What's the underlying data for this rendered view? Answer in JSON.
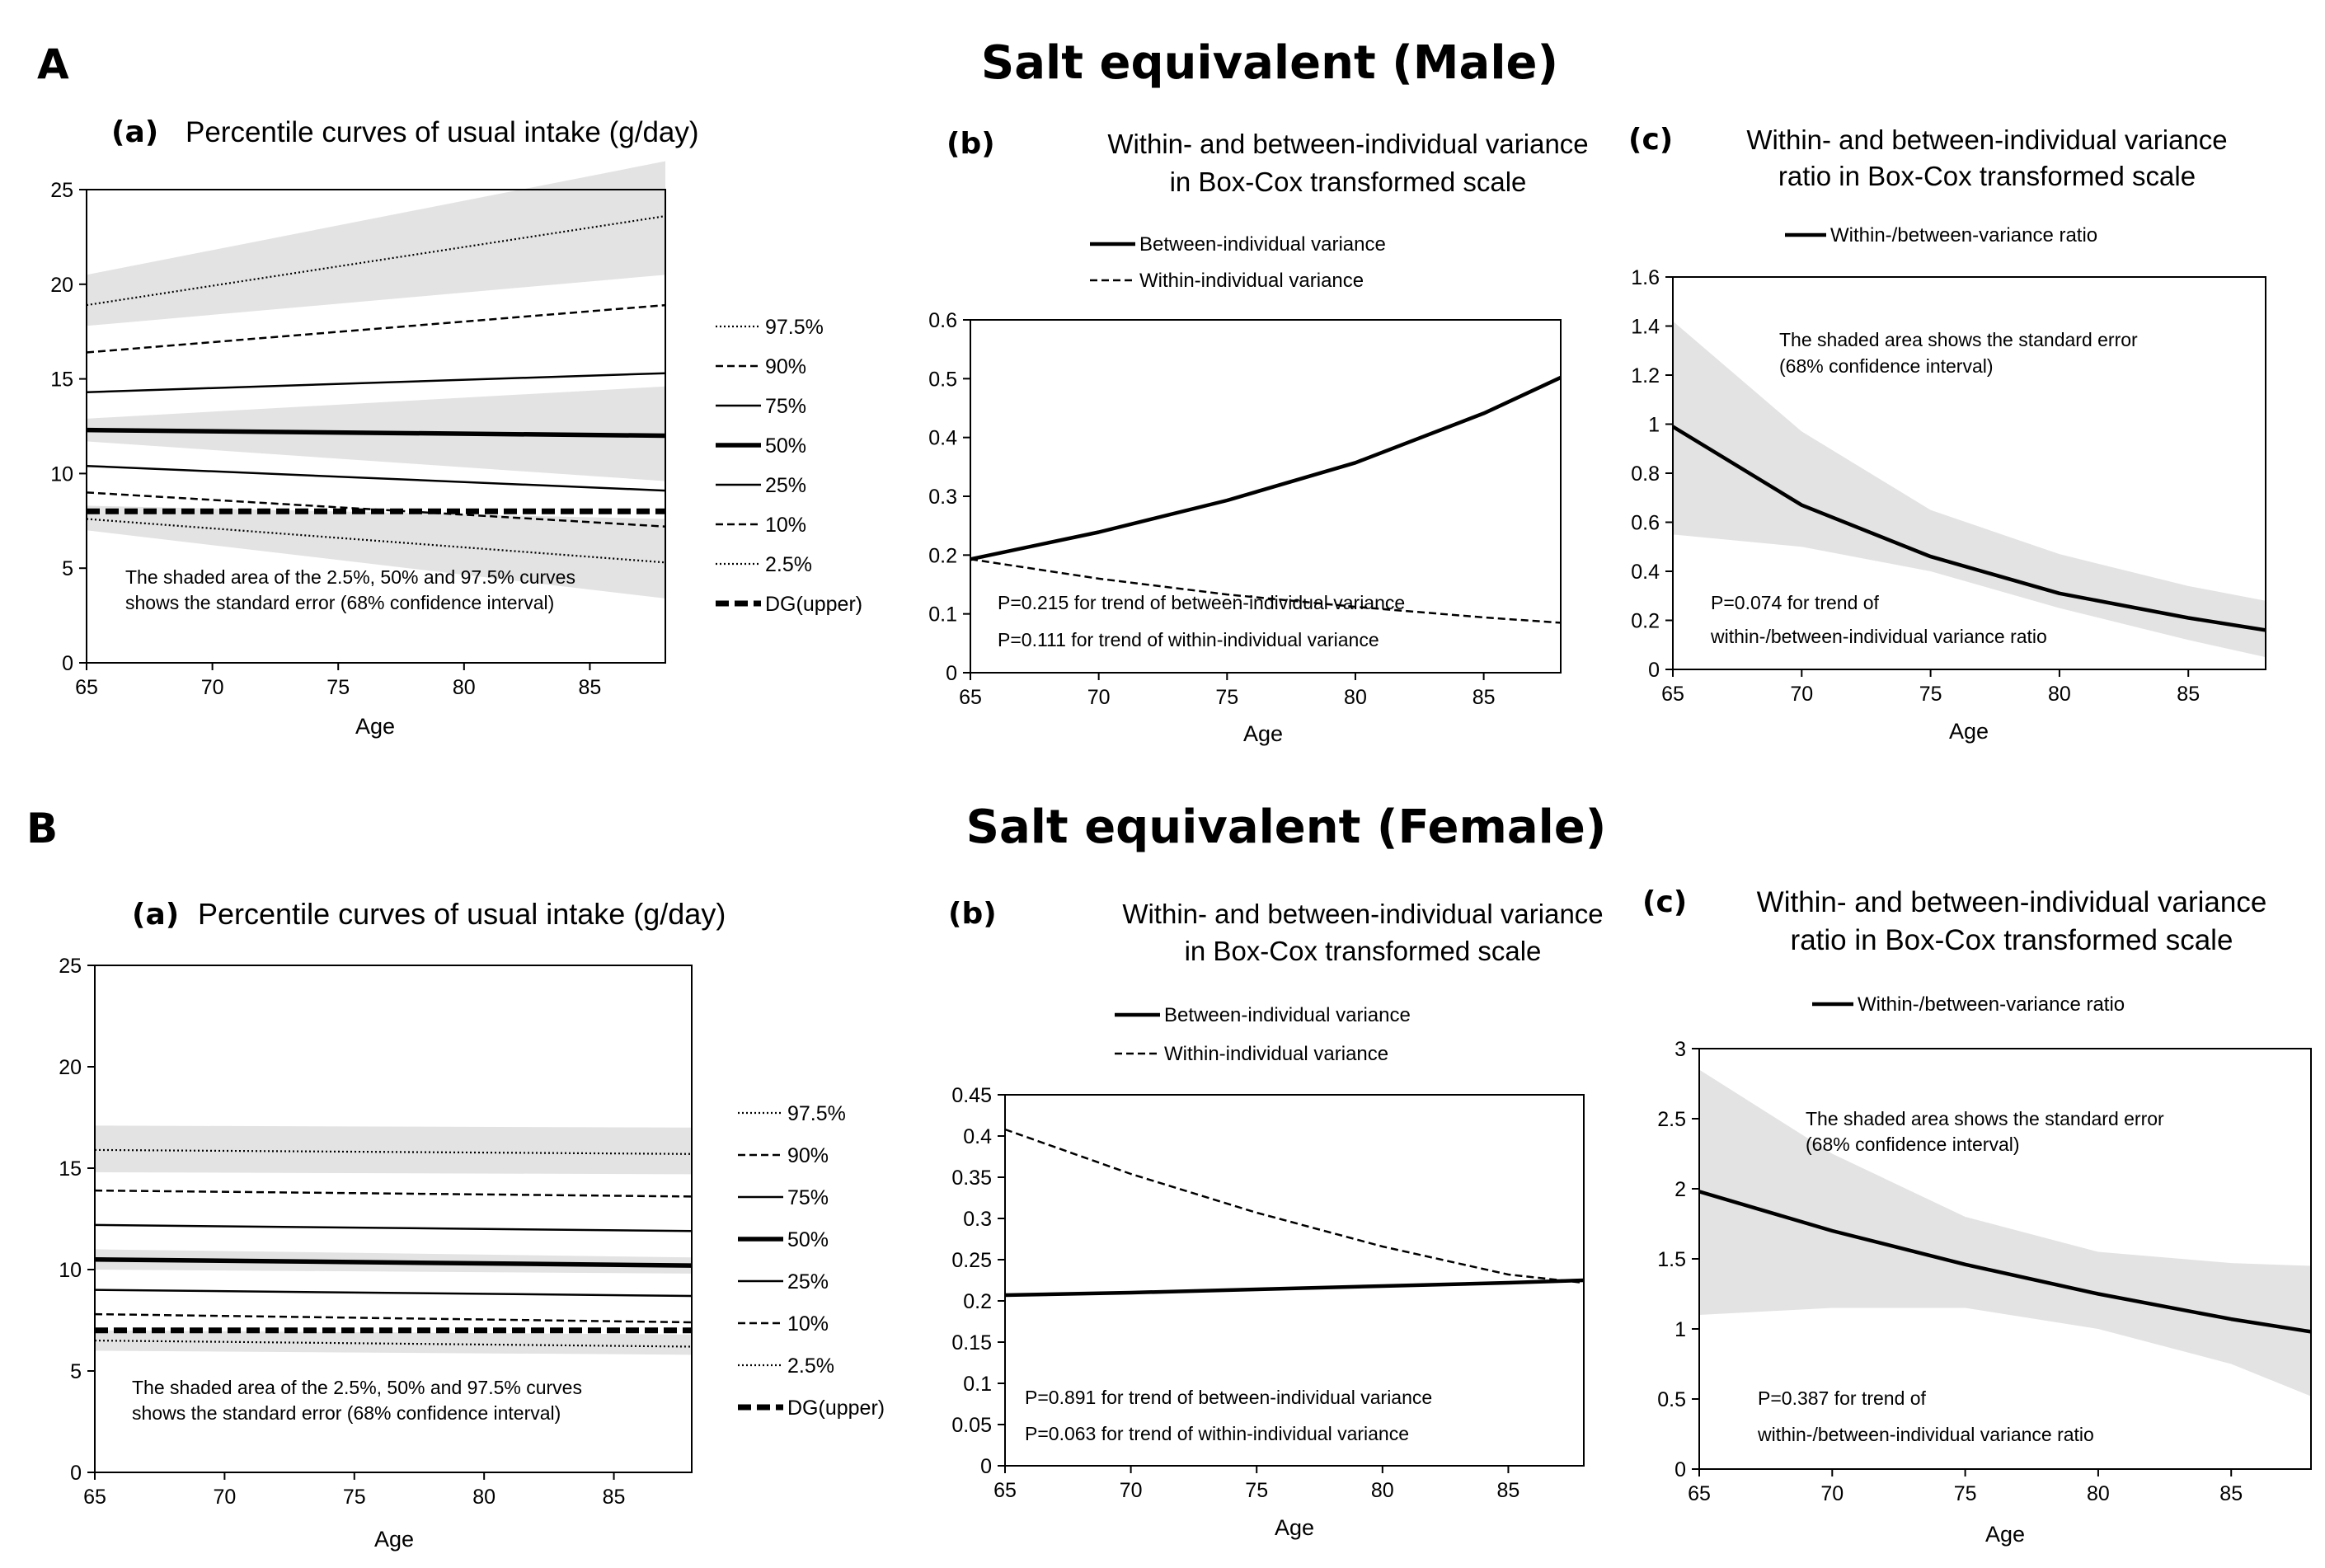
{
  "section_a": {
    "letter": "A",
    "title": "Salt equivalent (Male)"
  },
  "section_b": {
    "letter": "B",
    "title": "Salt equivalent (Female)"
  },
  "chart_data": [
    {
      "id": "male_a",
      "type": "line",
      "label": "(a)",
      "title": [
        "Percentile curves of usual intake (g/day)"
      ],
      "xlabel": "Age",
      "ylabel": "",
      "xlim": [
        65,
        88
      ],
      "ylim": [
        0,
        25
      ],
      "xticks": [
        65,
        70,
        75,
        80,
        85
      ],
      "yticks": [
        0,
        5,
        10,
        15,
        20,
        25
      ],
      "x": [
        65,
        88
      ],
      "bands": [
        {
          "of": "97.5%",
          "lower": [
            17.8,
            20.5
          ],
          "upper": [
            20.5,
            26.5
          ]
        },
        {
          "of": "50%",
          "lower": [
            11.7,
            9.6
          ],
          "upper": [
            12.9,
            14.6
          ]
        },
        {
          "of": "2.5%",
          "lower": [
            7.0,
            3.4
          ],
          "upper": [
            8.3,
            7.6
          ]
        }
      ],
      "series": [
        {
          "name": "97.5%",
          "style": "dotted",
          "values": [
            18.9,
            23.6
          ]
        },
        {
          "name": "90%",
          "style": "dashed",
          "values": [
            16.4,
            18.9
          ]
        },
        {
          "name": "75%",
          "style": "solid",
          "values": [
            14.3,
            15.3
          ]
        },
        {
          "name": "50%",
          "style": "bold",
          "values": [
            12.3,
            12.0
          ]
        },
        {
          "name": "25%",
          "style": "solid",
          "values": [
            10.4,
            9.1
          ]
        },
        {
          "name": "10%",
          "style": "dashed",
          "values": [
            9.0,
            7.2
          ]
        },
        {
          "name": "2.5%",
          "style": "dotted",
          "values": [
            7.6,
            5.3
          ]
        },
        {
          "name": "DG(upper)",
          "style": "thickdash",
          "values": [
            8.0,
            8.0
          ]
        }
      ],
      "note": [
        "The shaded area of the 2.5%, 50% and 97.5% curves",
        "shows the standard error (68% confidence interval)"
      ]
    },
    {
      "id": "male_b",
      "type": "line",
      "label": "(b)",
      "title": [
        "Within- and between-individual variance",
        "in Box-Cox transformed scale"
      ],
      "xlabel": "Age",
      "ylabel": "",
      "xlim": [
        65,
        88
      ],
      "ylim": [
        0,
        0.6
      ],
      "xticks": [
        65,
        70,
        75,
        80,
        85
      ],
      "yticks": [
        0,
        0.1,
        0.2,
        0.3,
        0.4,
        0.5,
        0.6
      ],
      "x": [
        65,
        70,
        75,
        80,
        85,
        88
      ],
      "series": [
        {
          "name": "Between-individual variance",
          "style": "thick",
          "values": [
            0.193,
            0.239,
            0.293,
            0.357,
            0.441,
            0.502
          ]
        },
        {
          "name": "Within-individual variance",
          "style": "dashed",
          "values": [
            0.193,
            0.16,
            0.133,
            0.112,
            0.094,
            0.085
          ]
        }
      ],
      "note": [
        "P=0.215 for trend of between-individual variance",
        "P=0.111 for trend of within-individual variance"
      ]
    },
    {
      "id": "male_c",
      "type": "line",
      "label": "(c)",
      "title": [
        "Within- and between-individual variance",
        "ratio in Box-Cox transformed scale"
      ],
      "xlabel": "Age",
      "ylabel": "",
      "xlim": [
        65,
        88
      ],
      "ylim": [
        0,
        1.6
      ],
      "xticks": [
        65,
        70,
        75,
        80,
        85
      ],
      "yticks": [
        0,
        0.2,
        0.4,
        0.6,
        0.8,
        1,
        1.2,
        1.4,
        1.6
      ],
      "x": [
        65,
        70,
        75,
        80,
        85,
        88
      ],
      "bands": [
        {
          "of": "Within-/between-variance ratio",
          "lower": [
            0.55,
            0.5,
            0.4,
            0.25,
            0.12,
            0.05
          ],
          "upper": [
            1.42,
            0.97,
            0.65,
            0.47,
            0.34,
            0.28
          ]
        }
      ],
      "series": [
        {
          "name": "Within-/between-variance ratio",
          "style": "thick",
          "values": [
            0.99,
            0.67,
            0.46,
            0.31,
            0.21,
            0.16
          ]
        }
      ],
      "note": [
        "The shaded area shows the standard error",
        "(68% confidence interval)"
      ],
      "note2": [
        "P=0.074 for trend of",
        "within-/between-individual variance ratio"
      ]
    },
    {
      "id": "female_a",
      "type": "line",
      "label": "(a)",
      "title": [
        "Percentile curves of usual intake (g/day)"
      ],
      "xlabel": "Age",
      "ylabel": "",
      "xlim": [
        65,
        88
      ],
      "ylim": [
        0,
        25
      ],
      "xticks": [
        65,
        70,
        75,
        80,
        85
      ],
      "yticks": [
        0,
        5,
        10,
        15,
        20,
        25
      ],
      "x": [
        65,
        88
      ],
      "bands": [
        {
          "of": "97.5%",
          "lower": [
            14.8,
            14.7
          ],
          "upper": [
            17.1,
            17.0
          ]
        },
        {
          "of": "50%",
          "lower": [
            10.0,
            9.8
          ],
          "upper": [
            11.0,
            10.6
          ]
        },
        {
          "of": "2.5%",
          "lower": [
            6.0,
            5.8
          ],
          "upper": [
            7.0,
            6.8
          ]
        }
      ],
      "series": [
        {
          "name": "97.5%",
          "style": "dotted",
          "values": [
            15.9,
            15.7
          ]
        },
        {
          "name": "90%",
          "style": "dashed",
          "values": [
            13.9,
            13.6
          ]
        },
        {
          "name": "75%",
          "style": "solid",
          "values": [
            12.2,
            11.9
          ]
        },
        {
          "name": "50%",
          "style": "bold",
          "values": [
            10.5,
            10.2
          ]
        },
        {
          "name": "25%",
          "style": "solid",
          "values": [
            9.0,
            8.7
          ]
        },
        {
          "name": "10%",
          "style": "dashed",
          "values": [
            7.8,
            7.4
          ]
        },
        {
          "name": "2.5%",
          "style": "dotted",
          "values": [
            6.5,
            6.2
          ]
        },
        {
          "name": "DG(upper)",
          "style": "thickdash",
          "values": [
            7.0,
            7.0
          ]
        }
      ],
      "note": [
        "The shaded area of the 2.5%, 50% and 97.5% curves",
        "shows the standard error (68% confidence interval)"
      ]
    },
    {
      "id": "female_b",
      "type": "line",
      "label": "(b)",
      "title": [
        "Within- and between-individual variance",
        "in Box-Cox transformed scale"
      ],
      "xlabel": "Age",
      "ylabel": "",
      "xlim": [
        65,
        88
      ],
      "ylim": [
        0,
        0.45
      ],
      "xticks": [
        65,
        70,
        75,
        80,
        85
      ],
      "yticks": [
        0,
        0.05,
        0.1,
        0.15,
        0.2,
        0.25,
        0.3,
        0.35,
        0.4,
        0.45
      ],
      "x": [
        65,
        70,
        75,
        80,
        85,
        88
      ],
      "series": [
        {
          "name": "Between-individual variance",
          "style": "thick",
          "values": [
            0.207,
            0.21,
            0.214,
            0.218,
            0.222,
            0.225
          ]
        },
        {
          "name": "Within-individual variance",
          "style": "dashed",
          "values": [
            0.408,
            0.354,
            0.307,
            0.266,
            0.232,
            0.222
          ]
        }
      ],
      "note": [
        "P=0.891 for trend of between-individual variance",
        "P=0.063 for trend of within-individual variance"
      ]
    },
    {
      "id": "female_c",
      "type": "line",
      "label": "(c)",
      "title": [
        "Within- and between-individual variance",
        "ratio in Box-Cox transformed scale"
      ],
      "xlabel": "Age",
      "ylabel": "",
      "xlim": [
        65,
        88
      ],
      "ylim": [
        0,
        3
      ],
      "xticks": [
        65,
        70,
        75,
        80,
        85
      ],
      "yticks": [
        0,
        0.5,
        1,
        1.5,
        2,
        2.5,
        3
      ],
      "x": [
        65,
        70,
        75,
        80,
        85,
        88
      ],
      "bands": [
        {
          "of": "Within-/between-variance ratio",
          "lower": [
            1.1,
            1.15,
            1.15,
            1.0,
            0.75,
            0.52
          ],
          "upper": [
            2.85,
            2.25,
            1.8,
            1.55,
            1.47,
            1.45
          ]
        }
      ],
      "series": [
        {
          "name": "Within-/between-variance ratio",
          "style": "thick",
          "values": [
            1.98,
            1.7,
            1.46,
            1.25,
            1.07,
            0.98
          ]
        }
      ],
      "note": [
        "The shaded area shows the standard error",
        "(68% confidence interval)"
      ],
      "note2": [
        "P=0.387 for trend of",
        "within-/between-individual variance ratio"
      ]
    }
  ]
}
